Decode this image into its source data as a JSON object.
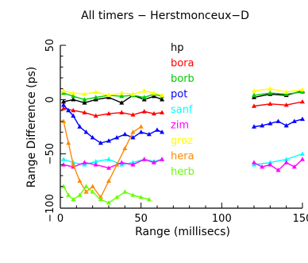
{
  "chart_data": {
    "type": "line",
    "title": "All timers − Herstmonceux−D",
    "xlabel": "Range (millisecs)",
    "ylabel": "Range Difference (ps)",
    "xlim": [
      0,
      150
    ],
    "ylim": [
      -100,
      50
    ],
    "x_ticks": [
      0,
      50,
      100,
      150
    ],
    "x_tick_labels": [
      "0",
      "50",
      "100",
      "150"
    ],
    "y_ticks": [
      -100,
      -50,
      0,
      50
    ],
    "y_tick_labels": [
      "−100",
      "−50",
      "0",
      "50"
    ],
    "grid": false,
    "legend_position": "top-right (inside)",
    "series": [
      {
        "name": "hp",
        "color": "#000000",
        "x": [
          2,
          8,
          15,
          22,
          30,
          38,
          45,
          52,
          58,
          63,
          120,
          130,
          140,
          150
        ],
        "y": [
          -2,
          0,
          -3,
          0,
          2,
          -3,
          4,
          0,
          3,
          0,
          2,
          5,
          4,
          8
        ]
      },
      {
        "name": "bora",
        "color": "#ff0000",
        "x": [
          2,
          8,
          15,
          22,
          30,
          38,
          45,
          52,
          58,
          63,
          120,
          130,
          140,
          150
        ],
        "y": [
          -8,
          -10,
          -12,
          -15,
          -13,
          -12,
          -14,
          -11,
          -13,
          -12,
          -6,
          -4,
          -5,
          -2
        ]
      },
      {
        "name": "borb",
        "color": "#00cc00",
        "x": [
          2,
          8,
          15,
          22,
          30,
          38,
          45,
          52,
          58,
          63,
          120,
          130,
          140,
          150
        ],
        "y": [
          6,
          3,
          0,
          2,
          4,
          3,
          4,
          2,
          5,
          3,
          4,
          6,
          5,
          7
        ]
      },
      {
        "name": "pot",
        "color": "#0000ff",
        "x": [
          2,
          5,
          8,
          12,
          16,
          20,
          25,
          30,
          35,
          40,
          45,
          50,
          55,
          60,
          63,
          120,
          125,
          130,
          135,
          140,
          145,
          150
        ],
        "y": [
          -5,
          -10,
          -15,
          -25,
          -30,
          -35,
          -40,
          -38,
          -35,
          -32,
          -35,
          -30,
          -32,
          -28,
          -30,
          -25,
          -24,
          -22,
          -20,
          -24,
          -20,
          -18
        ]
      },
      {
        "name": "sanf",
        "color": "#00ffff",
        "x": [
          2,
          8,
          15,
          22,
          30,
          38,
          45,
          52,
          58,
          63,
          120,
          130,
          140,
          150
        ],
        "y": [
          -55,
          -58,
          -60,
          -57,
          -55,
          -60,
          -58,
          -55,
          -57,
          -55,
          -60,
          -58,
          -55,
          -50
        ]
      },
      {
        "name": "zim",
        "color": "#ff00ff",
        "x": [
          2,
          8,
          15,
          22,
          30,
          38,
          45,
          52,
          58,
          63,
          120,
          125,
          130,
          135,
          140,
          145,
          150
        ],
        "y": [
          -60,
          -62,
          -58,
          -60,
          -63,
          -58,
          -60,
          -55,
          -58,
          -55,
          -58,
          -62,
          -60,
          -65,
          -58,
          -62,
          -55
        ]
      },
      {
        "name": "groz",
        "color": "#ffff00",
        "x": [
          2,
          8,
          15,
          22,
          30,
          38,
          45,
          52,
          58,
          63,
          120,
          130,
          140,
          150
        ],
        "y": [
          8,
          6,
          5,
          7,
          4,
          6,
          5,
          8,
          6,
          4,
          8,
          10,
          7,
          9
        ]
      },
      {
        "name": "hera",
        "color": "#ff8800",
        "x": [
          2,
          5,
          8,
          12,
          16,
          20,
          25,
          30,
          35,
          40,
          45,
          50
        ],
        "y": [
          -20,
          -40,
          -60,
          -75,
          -85,
          -80,
          -90,
          -75,
          -60,
          -45,
          -30,
          -25
        ]
      },
      {
        "name": "herb",
        "color": "#66ff00",
        "x": [
          2,
          5,
          8,
          12,
          16,
          20,
          25,
          30,
          35,
          40,
          45,
          50,
          55
        ],
        "y": [
          -80,
          -88,
          -92,
          -88,
          -80,
          -85,
          -92,
          -95,
          -90,
          -85,
          -88,
          -90,
          -92
        ]
      }
    ]
  }
}
